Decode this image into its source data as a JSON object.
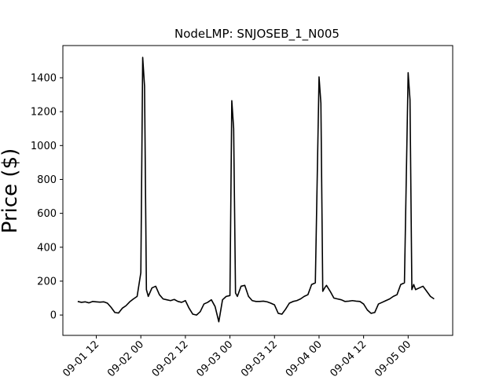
{
  "chart_data": {
    "type": "line",
    "title": "NodeLMP: SNJOSEB_1_N005",
    "xlabel": "",
    "ylabel": "Price ($)",
    "x_axis_type": "datetime",
    "xlim": [
      "2023-09-01 03:00",
      "2023-09-05 12:00"
    ],
    "ylim": [
      -120,
      1590
    ],
    "grid": false,
    "line_color": "#000000",
    "x_ticks": [
      {
        "value": "2023-09-01 12:00",
        "label": "09-01 12"
      },
      {
        "value": "2023-09-02 00:00",
        "label": "09-02 00"
      },
      {
        "value": "2023-09-02 12:00",
        "label": "09-02 12"
      },
      {
        "value": "2023-09-03 00:00",
        "label": "09-03 00"
      },
      {
        "value": "2023-09-03 12:00",
        "label": "09-03 12"
      },
      {
        "value": "2023-09-04 00:00",
        "label": "09-04 00"
      },
      {
        "value": "2023-09-04 12:00",
        "label": "09-04 12"
      },
      {
        "value": "2023-09-05 00:00",
        "label": "09-05 00"
      }
    ],
    "y_ticks": [
      0,
      200,
      400,
      600,
      800,
      1000,
      1200,
      1400
    ],
    "series": [
      {
        "x": [
          "2023-09-01 07:00",
          "2023-09-01 08:00",
          "2023-09-01 09:00",
          "2023-09-01 10:00",
          "2023-09-01 11:00",
          "2023-09-01 12:00",
          "2023-09-01 13:00",
          "2023-09-01 14:00",
          "2023-09-01 15:00",
          "2023-09-01 16:00",
          "2023-09-01 17:00",
          "2023-09-01 18:00",
          "2023-09-01 19:00",
          "2023-09-01 20:00",
          "2023-09-01 21:00",
          "2023-09-01 22:00",
          "2023-09-01 23:00",
          "2023-09-02 00:00",
          "2023-09-02 00:30",
          "2023-09-02 01:00",
          "2023-09-02 01:30",
          "2023-09-02 02:00",
          "2023-09-02 03:00",
          "2023-09-02 04:00",
          "2023-09-02 05:00",
          "2023-09-02 06:00",
          "2023-09-02 07:00",
          "2023-09-02 08:00",
          "2023-09-02 09:00",
          "2023-09-02 10:00",
          "2023-09-02 11:00",
          "2023-09-02 12:00",
          "2023-09-02 13:00",
          "2023-09-02 14:00",
          "2023-09-02 15:00",
          "2023-09-02 16:00",
          "2023-09-02 17:00",
          "2023-09-02 18:00",
          "2023-09-02 19:00",
          "2023-09-02 20:00",
          "2023-09-02 21:00",
          "2023-09-02 22:00",
          "2023-09-02 23:00",
          "2023-09-03 00:00",
          "2023-09-03 00:30",
          "2023-09-03 01:00",
          "2023-09-03 01:30",
          "2023-09-03 02:00",
          "2023-09-03 03:00",
          "2023-09-03 04:00",
          "2023-09-03 05:00",
          "2023-09-03 06:00",
          "2023-09-03 07:00",
          "2023-09-03 08:00",
          "2023-09-03 09:00",
          "2023-09-03 10:00",
          "2023-09-03 11:00",
          "2023-09-03 12:00",
          "2023-09-03 13:00",
          "2023-09-03 14:00",
          "2023-09-03 15:00",
          "2023-09-03 16:00",
          "2023-09-03 17:00",
          "2023-09-03 18:00",
          "2023-09-03 19:00",
          "2023-09-03 20:00",
          "2023-09-03 21:00",
          "2023-09-03 22:00",
          "2023-09-03 23:00",
          "2023-09-04 00:00",
          "2023-09-04 00:30",
          "2023-09-04 01:00",
          "2023-09-04 01:30",
          "2023-09-04 02:00",
          "2023-09-04 03:00",
          "2023-09-04 04:00",
          "2023-09-04 05:00",
          "2023-09-04 06:00",
          "2023-09-04 07:00",
          "2023-09-04 08:00",
          "2023-09-04 09:00",
          "2023-09-04 10:00",
          "2023-09-04 11:00",
          "2023-09-04 12:00",
          "2023-09-04 13:00",
          "2023-09-04 14:00",
          "2023-09-04 15:00",
          "2023-09-04 16:00",
          "2023-09-04 17:00",
          "2023-09-04 18:00",
          "2023-09-04 19:00",
          "2023-09-04 20:00",
          "2023-09-04 21:00",
          "2023-09-04 22:00",
          "2023-09-04 23:00",
          "2023-09-05 00:00",
          "2023-09-05 00:30",
          "2023-09-05 01:00",
          "2023-09-05 01:30",
          "2023-09-05 02:00",
          "2023-09-05 03:00",
          "2023-09-05 04:00",
          "2023-09-05 05:00",
          "2023-09-05 06:00",
          "2023-09-05 07:00"
        ],
        "values": [
          80,
          75,
          78,
          72,
          80,
          78,
          76,
          78,
          70,
          45,
          15,
          12,
          40,
          55,
          78,
          95,
          110,
          250,
          1520,
          1350,
          150,
          110,
          160,
          170,
          120,
          95,
          90,
          85,
          92,
          80,
          75,
          85,
          40,
          5,
          0,
          20,
          65,
          75,
          90,
          50,
          -40,
          90,
          110,
          115,
          1265,
          1100,
          130,
          110,
          170,
          175,
          110,
          85,
          80,
          80,
          82,
          78,
          70,
          60,
          10,
          5,
          35,
          70,
          80,
          85,
          95,
          110,
          120,
          180,
          190,
          1405,
          1250,
          140,
          160,
          175,
          140,
          100,
          95,
          90,
          80,
          82,
          85,
          82,
          80,
          65,
          30,
          10,
          15,
          65,
          75,
          85,
          95,
          110,
          120,
          180,
          190,
          1430,
          1270,
          150,
          180,
          150,
          160,
          170,
          140,
          110,
          95
        ]
      }
    ]
  }
}
